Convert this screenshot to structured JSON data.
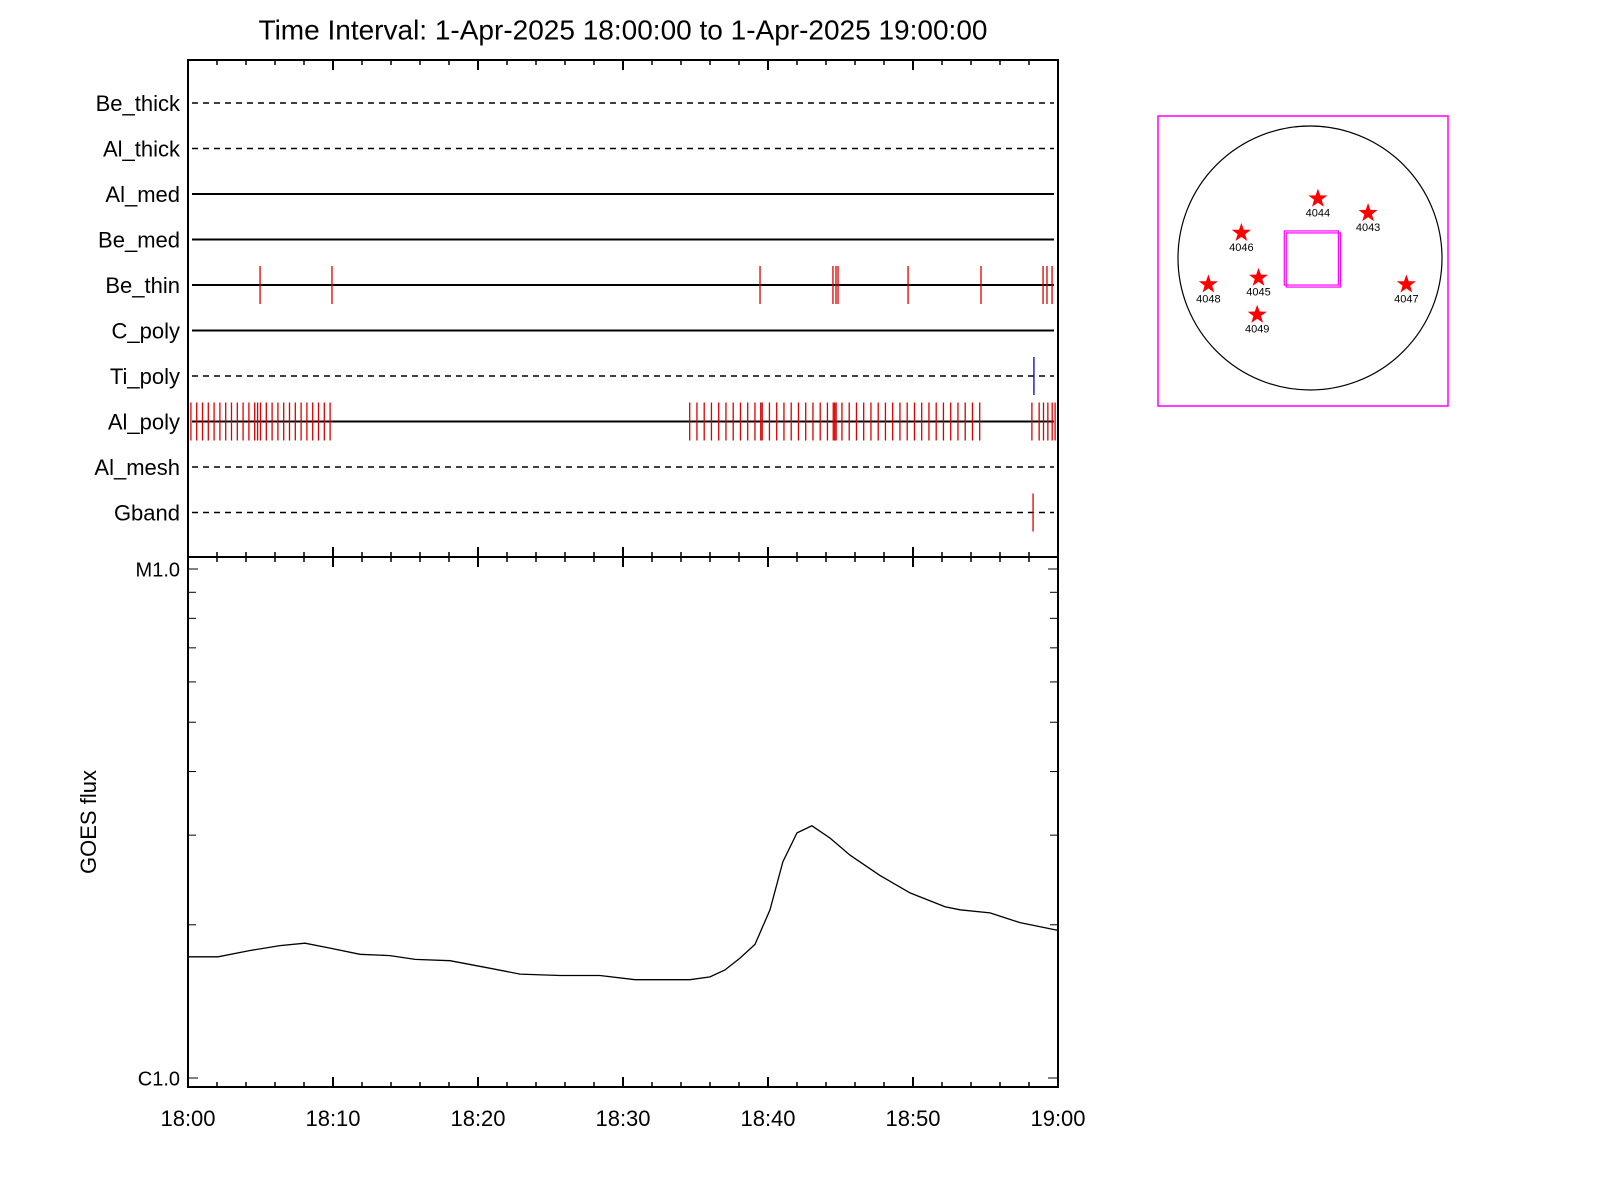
{
  "chart_data": [
    {
      "type": "timeline",
      "title": "Time Interval:  1-Apr-2025 18:00:00 to  1-Apr-2025 19:00:00",
      "xlim": [
        0,
        60
      ],
      "rows": [
        {
          "name": "Be_thick",
          "style": "dashed",
          "color": "#dd0000",
          "events": []
        },
        {
          "name": "Al_thick",
          "style": "dashed",
          "color": "#dd0000",
          "events": []
        },
        {
          "name": "Al_med",
          "style": "solid",
          "color": "#dd0000",
          "events": []
        },
        {
          "name": "Be_med",
          "style": "solid",
          "color": "#dd0000",
          "events": []
        },
        {
          "name": "Be_thin",
          "style": "solid",
          "color": "#dd0000",
          "events": [
            4.97,
            9.93,
            39.45,
            44.48,
            44.69,
            44.83,
            49.66,
            54.69,
            58.97,
            59.24,
            59.59
          ]
        },
        {
          "name": "C_poly",
          "style": "solid",
          "color": "#dd0000",
          "events": []
        },
        {
          "name": "Ti_poly",
          "style": "dashed",
          "color": "#0000cc",
          "events": [
            58.34
          ]
        },
        {
          "name": "Al_poly",
          "style": "solid",
          "color": "#dd0000",
          "events": [
            0.2,
            0.6,
            1.0,
            1.4,
            1.8,
            2.2,
            2.6,
            3.0,
            3.4,
            3.8,
            4.2,
            4.6,
            4.8,
            5.0,
            5.4,
            5.8,
            6.2,
            6.6,
            7.0,
            7.4,
            7.8,
            8.2,
            8.6,
            9.0,
            9.4,
            9.8,
            34.6,
            35.1,
            35.6,
            36.1,
            36.6,
            37.1,
            37.6,
            38.1,
            38.6,
            39.1,
            39.5,
            39.6,
            40.1,
            40.6,
            41.1,
            41.6,
            42.1,
            42.6,
            43.1,
            43.6,
            44.1,
            44.5,
            44.6,
            44.7,
            45.1,
            45.6,
            46.1,
            46.6,
            47.1,
            47.6,
            48.1,
            48.6,
            49.1,
            49.6,
            50.1,
            50.6,
            51.1,
            51.6,
            52.1,
            52.6,
            53.1,
            53.6,
            54.1,
            54.6,
            58.2,
            58.7,
            59.0,
            59.3,
            59.6,
            59.8
          ]
        },
        {
          "name": "Al_mesh",
          "style": "dashed",
          "color": "#dd0000",
          "events": []
        },
        {
          "name": "Gband",
          "style": "dashed",
          "color": "#dd0000",
          "events": [
            58.28
          ]
        }
      ]
    },
    {
      "type": "line",
      "y_label": "GOES flux",
      "log_y": true,
      "color": "#000000",
      "x": [
        0,
        2.07,
        4.28,
        6.34,
        8.07,
        9.79,
        11.86,
        13.93,
        15.66,
        18.07,
        20.48,
        22.9,
        25.66,
        28.41,
        30.83,
        34.62,
        36.0,
        37.03,
        38.07,
        39.1,
        40.14,
        41.03,
        42.0,
        43.03,
        44.28,
        45.66,
        47.72,
        49.79,
        52.21,
        53.24,
        55.31,
        57.38,
        60.0
      ],
      "values": [
        1.73e-06,
        1.73e-06,
        1.78e-06,
        1.82e-06,
        1.84e-06,
        1.8e-06,
        1.75e-06,
        1.74e-06,
        1.71e-06,
        1.7e-06,
        1.65e-06,
        1.6e-06,
        1.59e-06,
        1.59e-06,
        1.56e-06,
        1.56e-06,
        1.58e-06,
        1.63e-06,
        1.72e-06,
        1.83e-06,
        2.14e-06,
        2.66e-06,
        3.03e-06,
        3.13e-06,
        2.96e-06,
        2.74e-06,
        2.5e-06,
        2.31e-06,
        2.17e-06,
        2.14e-06,
        2.11e-06,
        2.02e-06,
        1.95e-06
      ],
      "xlim": [
        0,
        60
      ],
      "xticks": [
        {
          "value": 0,
          "label": "18:00"
        },
        {
          "value": 10,
          "label": "18:10"
        },
        {
          "value": 20,
          "label": "18:20"
        },
        {
          "value": 30,
          "label": "18:30"
        },
        {
          "value": 40,
          "label": "18:40"
        },
        {
          "value": 50,
          "label": "18:50"
        },
        {
          "value": 60,
          "label": "19:00"
        }
      ],
      "xminor": [
        2,
        4,
        6,
        8,
        12,
        14,
        16,
        18,
        22,
        24,
        26,
        28,
        32,
        34,
        36,
        38,
        42,
        44,
        46,
        48,
        52,
        54,
        56,
        58
      ],
      "ylim": [
        1e-06,
        1e-05
      ],
      "yticks": [
        {
          "value": 1e-06,
          "label": "C1.0"
        },
        {
          "value": 1e-05,
          "label": "M1.0"
        }
      ],
      "yminor": [
        2e-06,
        3e-06,
        4e-06,
        5e-06,
        6e-06,
        7e-06,
        8e-06,
        9e-06
      ]
    },
    {
      "type": "sunmap",
      "frame_color": "#ff00ff",
      "star_color": "#ff0000",
      "regions": [
        {
          "label": "4044",
          "x": 0.06,
          "y": 0.45
        },
        {
          "label": "4043",
          "x": 0.44,
          "y": 0.34
        },
        {
          "label": "4046",
          "x": -0.52,
          "y": 0.19
        },
        {
          "label": "4048",
          "x": -0.77,
          "y": -0.2
        },
        {
          "label": "4045",
          "x": -0.39,
          "y": -0.15
        },
        {
          "label": "4047",
          "x": 0.73,
          "y": -0.2
        },
        {
          "label": "4049",
          "x": -0.4,
          "y": -0.43
        }
      ],
      "fov": {
        "x": 0.01,
        "y": 0.0,
        "size": 0.41
      }
    }
  ]
}
